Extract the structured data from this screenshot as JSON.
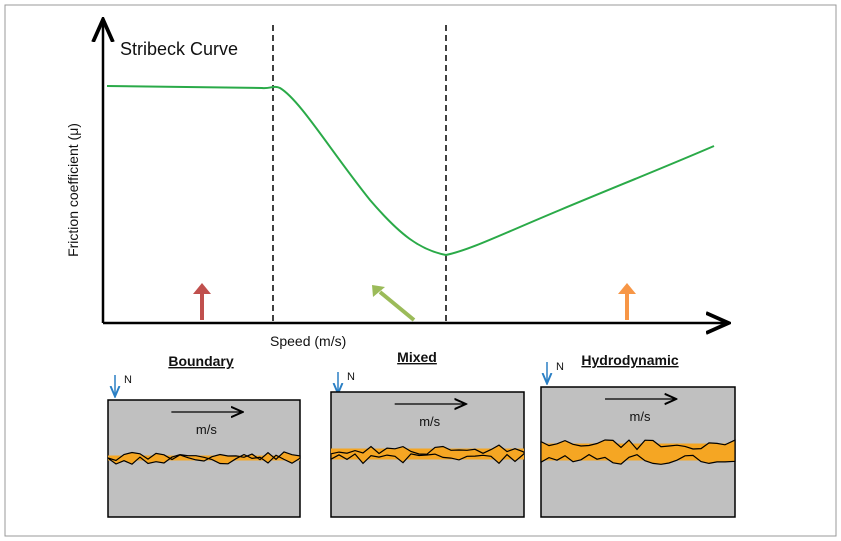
{
  "title": "Stribeck Curve",
  "y_axis_label": "Friction coefficient (μ)",
  "x_axis_label": "Speed (m/s)",
  "regimes": [
    {
      "name": "Boundary",
      "load_label": "N",
      "speed_label": "m/s"
    },
    {
      "name": "Mixed",
      "load_label": "N",
      "speed_label": "m/s"
    },
    {
      "name": "Hydrodynamic",
      "load_label": "N",
      "speed_label": "m/s"
    }
  ]
}
